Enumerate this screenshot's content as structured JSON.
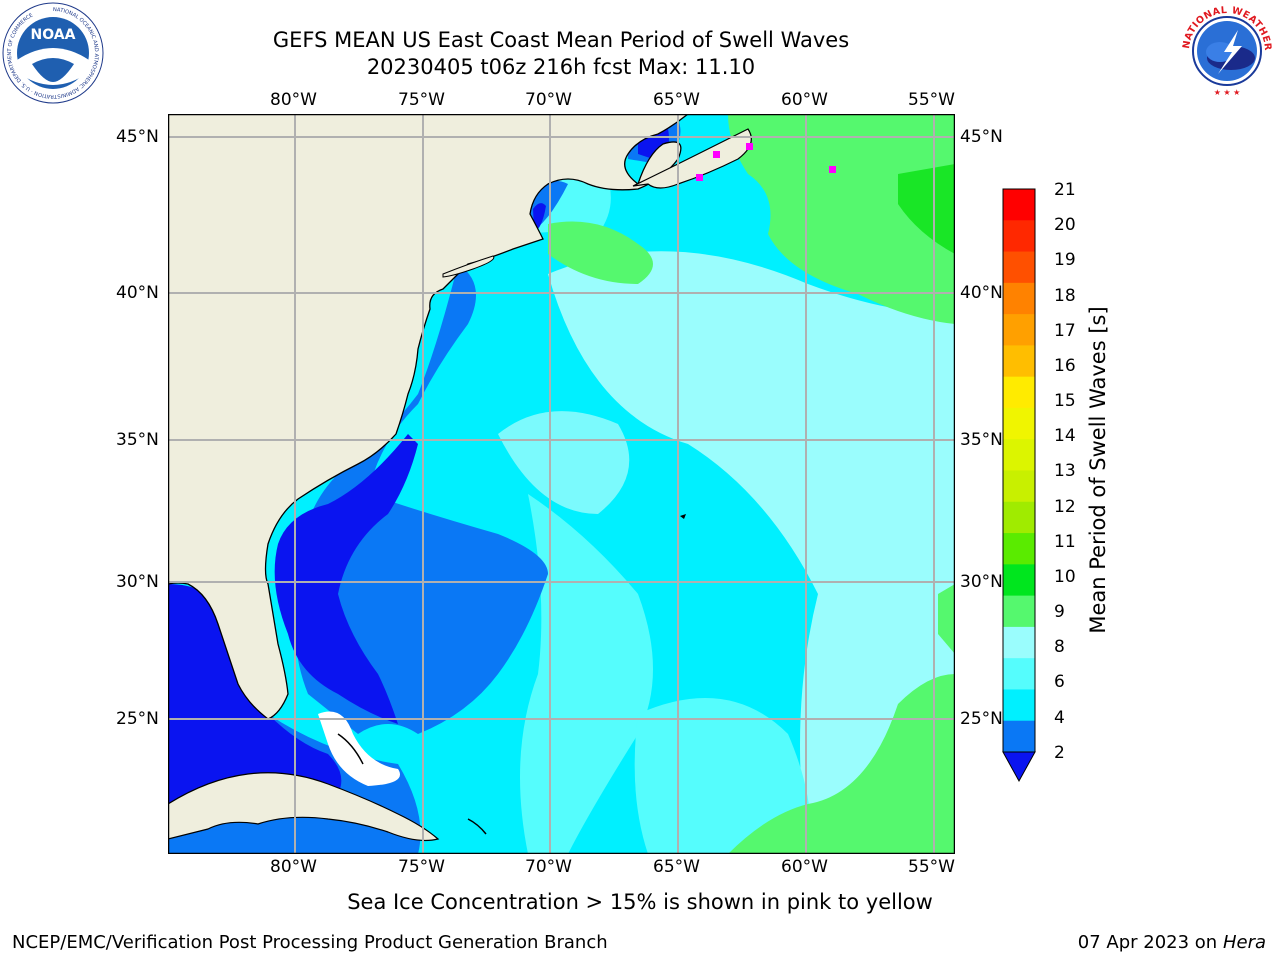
{
  "header": {
    "title_line1": "GEFS MEAN US East Coast Mean Period of Swell Waves",
    "title_line2": "20230405 t06z 216h fcst   Max: 11.10"
  },
  "logos": {
    "noaa_text": "NOAA",
    "noaa_ring_text": "NATIONAL OCEANIC AND ATMOSPHERIC ADMINISTRATION · U.S. DEPARTMENT OF COMMERCE",
    "nws_ring_text": "NATIONAL WEATHER SERVICE"
  },
  "map": {
    "lon_labels_top": [
      "80°W",
      "75°W",
      "70°W",
      "65°W",
      "60°W",
      "55°W"
    ],
    "lon_labels_bottom": [
      "80°W",
      "75°W",
      "70°W",
      "65°W",
      "60°W",
      "55°W"
    ],
    "lat_labels_left": [
      "45°N",
      "40°N",
      "35°N",
      "30°N",
      "25°N"
    ],
    "lat_labels_right": [
      "45°N",
      "40°N",
      "35°N",
      "30°N",
      "25°N"
    ],
    "colors": {
      "land": "#efeedd",
      "deep_blue": "#0a14f0",
      "medium_blue": "#0a78f5",
      "cyan": "#00f0ff",
      "light_cyan": "#55fdfd",
      "pale_cyan": "#9afdfd",
      "light_green": "#55f86e",
      "green": "#19e626",
      "sea_ice": "#ff00ff",
      "grid": "#b0b0b0"
    }
  },
  "colorbar": {
    "label": "Mean Period of Swell Waves [s]",
    "ticks": [
      "21",
      "20",
      "19",
      "18",
      "17",
      "16",
      "15",
      "14",
      "13",
      "12",
      "11",
      "10",
      "9",
      "8",
      "6",
      "4",
      "2"
    ],
    "colors_top_to_bottom": [
      "#ff0000",
      "#ff2800",
      "#ff5000",
      "#ff8200",
      "#ffa000",
      "#ffbe00",
      "#ffeb00",
      "#f0f500",
      "#dcf500",
      "#c8f000",
      "#a0eb00",
      "#5aeb00",
      "#00e61e",
      "#55f86e",
      "#9afdfd",
      "#55fdfd",
      "#00f0ff",
      "#0a78f5"
    ],
    "under_color": "#0a14f0"
  },
  "footer": {
    "note": "Sea Ice Concentration > 15% is shown in pink to yellow",
    "left": "NCEP/EMC/Verification Post Processing Product Generation Branch",
    "right_date": "07 Apr 2023 on ",
    "right_host": "Hera"
  }
}
